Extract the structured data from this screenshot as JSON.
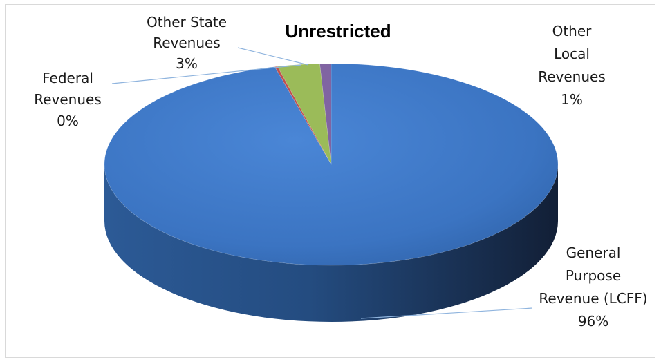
{
  "chart_data": {
    "type": "pie",
    "title": "Unrestricted",
    "style": "3d",
    "legend": "none",
    "slices": [
      {
        "name": "General Purpose Revenue (LCFF)",
        "label_lines": [
          "General",
          "Purpose",
          "Revenue (LCFF)",
          "96%"
        ],
        "value": 96,
        "percent_label": "96%",
        "color": "#3f78c8"
      },
      {
        "name": "Federal Revenues",
        "label_lines": [
          "Federal",
          "Revenues",
          "0%"
        ],
        "value": 0.2,
        "percent_label": "0%",
        "color": "#c0504d"
      },
      {
        "name": "Other State Revenues",
        "label_lines": [
          "Other State",
          "Revenues",
          "3%"
        ],
        "value": 3,
        "percent_label": "3%",
        "color": "#9bbb59"
      },
      {
        "name": "Other Local Revenues",
        "label_lines": [
          "Other",
          "Local",
          "Revenues",
          "1%"
        ],
        "value": 0.8,
        "percent_label": "1%",
        "color": "#8064a2"
      }
    ]
  }
}
